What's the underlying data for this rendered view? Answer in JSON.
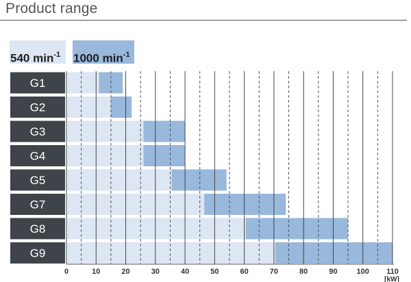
{
  "title": "Product range",
  "colors": {
    "rpm540": "#dde6f3",
    "rpm1000": "#98b8dc",
    "label_bg": "#3f444a",
    "grid": "#444444"
  },
  "legend": {
    "rpm540_value": "540",
    "rpm540_unit": "min",
    "rpm540_exp": "-1",
    "rpm1000_value": "1000",
    "rpm1000_unit": "min",
    "rpm1000_exp": "-1"
  },
  "chart_data": {
    "type": "bar",
    "orientation": "horizontal",
    "title": "Product range",
    "xlabel": "[kW]",
    "xlim": [
      0,
      110
    ],
    "xticks": [
      0,
      10,
      20,
      30,
      40,
      50,
      60,
      70,
      80,
      90,
      100,
      110
    ],
    "minor_dashed_ticks": [
      5,
      15,
      25,
      35,
      45,
      55,
      65,
      75,
      85,
      95,
      105
    ],
    "categories": [
      "G1",
      "G2",
      "G3",
      "G4",
      "G5",
      "G7",
      "G8",
      "G9"
    ],
    "series": [
      {
        "name": "540 min-1",
        "color": "#dde6f3",
        "values": [
          [
            0,
            19
          ],
          [
            0,
            22
          ],
          [
            0,
            40
          ],
          [
            0,
            40
          ],
          [
            0,
            54
          ],
          [
            0,
            74
          ],
          [
            0,
            95
          ],
          [
            0,
            110
          ]
        ]
      },
      {
        "name": "1000 min-1",
        "color": "#98b8dc",
        "values": [
          [
            11,
            19
          ],
          [
            15,
            22
          ],
          [
            26,
            40
          ],
          [
            26,
            40
          ],
          [
            35.5,
            54
          ],
          [
            46.5,
            74
          ],
          [
            60.5,
            95
          ],
          [
            70.5,
            110
          ]
        ]
      }
    ],
    "grid": true,
    "legend_position": "top-left"
  }
}
